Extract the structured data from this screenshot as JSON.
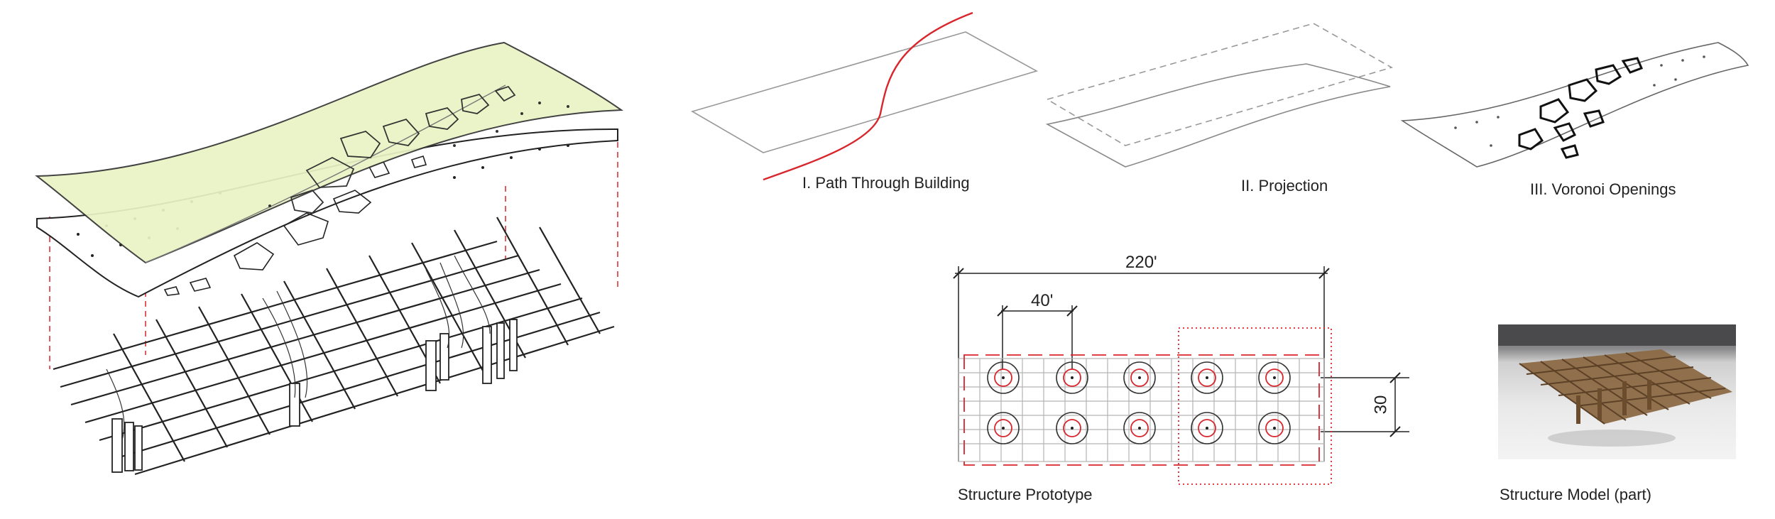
{
  "captions": {
    "path": "I. Path Through Building",
    "projection": "II. Projection",
    "voronoi": "III. Voronoi Openings",
    "prototype": "Structure Prototype",
    "model": "Structure Model (part)"
  },
  "dimensions": {
    "overall": "220'",
    "bay": "40'",
    "depth": "30"
  },
  "colors": {
    "canopy_fill": "#eaf4c4",
    "accent_red": "#d9252c",
    "line": "#333333",
    "grid": "#b5b5b5"
  },
  "icons": {
    "column": "circle-column-icon"
  }
}
